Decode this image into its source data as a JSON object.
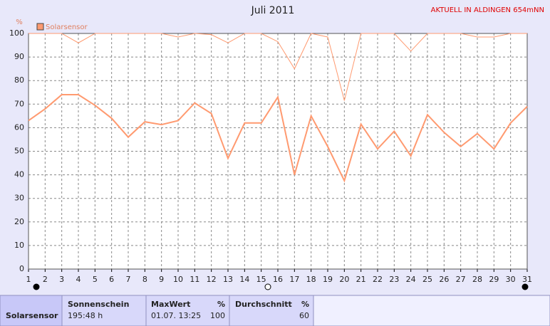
{
  "chart_data": {
    "type": "line",
    "title": "Juli 2011",
    "note": "AKTUELL IN ALDINGEN 654mNN",
    "y_label": "%",
    "legend": "Solarsensor",
    "x": [
      1,
      2,
      3,
      4,
      5,
      6,
      7,
      8,
      9,
      10,
      11,
      12,
      13,
      14,
      15,
      16,
      17,
      18,
      19,
      20,
      21,
      22,
      23,
      24,
      25,
      26,
      27,
      28,
      29,
      30,
      31
    ],
    "xlim": [
      1,
      31
    ],
    "xticks": [
      1,
      2,
      3,
      4,
      5,
      6,
      7,
      8,
      9,
      10,
      11,
      12,
      13,
      14,
      15,
      16,
      17,
      18,
      19,
      20,
      21,
      22,
      23,
      24,
      25,
      26,
      27,
      28,
      29,
      30,
      31
    ],
    "ylim": [
      0,
      100
    ],
    "yticks": [
      0,
      10,
      20,
      30,
      40,
      50,
      60,
      70,
      80,
      90,
      100
    ],
    "grid": true,
    "series": [
      {
        "color": "#ff9a70",
        "values": [
          100,
          100,
          100,
          96,
          100,
          100,
          100,
          100,
          100,
          98.5,
          100,
          99.5,
          96,
          100,
          100,
          96.5,
          85,
          100,
          98.5,
          71.5,
          100,
          100,
          100,
          92.5,
          100,
          100,
          100,
          98.5,
          98.5,
          100,
          100
        ]
      },
      {
        "color": "#ff9a70",
        "values": [
          63,
          68,
          74,
          74,
          69.5,
          64,
          56,
          62.5,
          61.3,
          63,
          70.5,
          66,
          47,
          62,
          62,
          73,
          40,
          65,
          52,
          37.5,
          61.5,
          51,
          58.5,
          48,
          65.5,
          58,
          52,
          57.5,
          51,
          62,
          69
        ]
      }
    ]
  },
  "summary": {
    "row_label": "Solarsensor",
    "columns": [
      {
        "header": "Sonnenschein",
        "value": "195:48 h"
      },
      {
        "header": "MaxWert",
        "unit": "%",
        "value": "01.07. 13:25",
        "value2": "100"
      },
      {
        "header": "Durchschnitt",
        "unit": "%",
        "value2": "60"
      }
    ]
  }
}
